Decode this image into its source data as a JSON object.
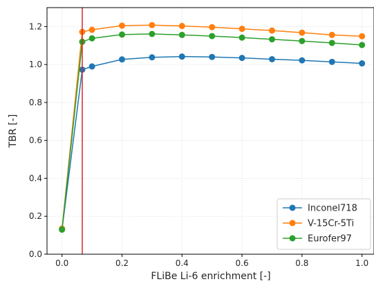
{
  "chart_data": {
    "type": "line",
    "xlabel": "FLiBe Li-6 enrichment [-]",
    "ylabel": "TBR [-]",
    "xlim": [
      -0.05,
      1.04
    ],
    "ylim": [
      0.0,
      1.3
    ],
    "xticks": [
      "0.0",
      "0.2",
      "0.4",
      "0.6",
      "0.8",
      "1.0"
    ],
    "yticks": [
      "0.0",
      "0.2",
      "0.4",
      "0.6",
      "0.8",
      "1.0",
      "1.2"
    ],
    "grid": true,
    "legend_position": "bottom-right",
    "x": [
      0.0,
      0.0675,
      0.1,
      0.2,
      0.3,
      0.4,
      0.5,
      0.6,
      0.7,
      0.8,
      0.9,
      1.0
    ],
    "series": [
      {
        "name": "Inconel718",
        "color": "#1f77b4",
        "values": [
          0.13,
          0.973,
          0.99,
          1.027,
          1.038,
          1.042,
          1.04,
          1.035,
          1.028,
          1.022,
          1.014,
          1.006
        ]
      },
      {
        "name": "V-15Cr-5Ti",
        "color": "#ff7f0e",
        "values": [
          0.135,
          1.172,
          1.183,
          1.205,
          1.208,
          1.203,
          1.197,
          1.188,
          1.179,
          1.168,
          1.156,
          1.149
        ]
      },
      {
        "name": "Eurofer97",
        "color": "#2ca02c",
        "values": [
          0.13,
          1.12,
          1.138,
          1.158,
          1.161,
          1.156,
          1.15,
          1.142,
          1.133,
          1.124,
          1.114,
          1.103
        ]
      }
    ],
    "vline": {
      "x": 0.0675,
      "color": "#d62728"
    }
  }
}
